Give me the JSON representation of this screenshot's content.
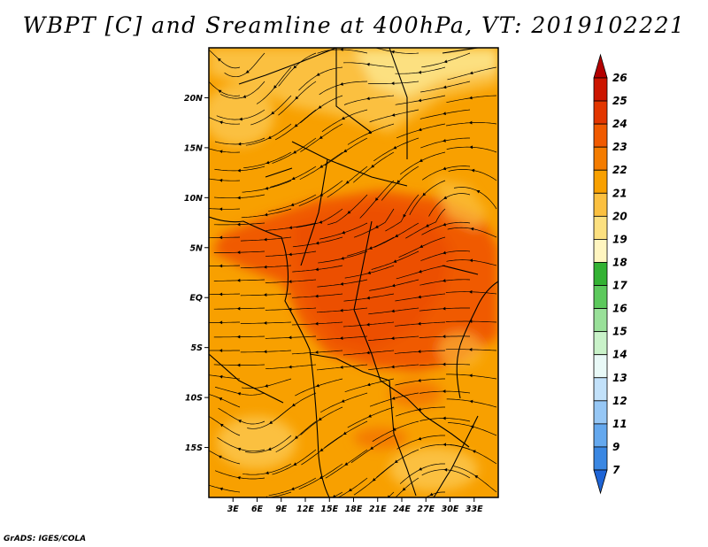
{
  "title": "WBPT [C] and Sreamline at 400hPa, VT: 2019102221",
  "footer": "GrADS: IGES/COLA",
  "map": {
    "variable": "WBPT [C]",
    "overlay": "Streamline",
    "level": "400hPa",
    "valid_time": "2019102221",
    "lon_range": [
      0,
      36
    ],
    "lat_range": [
      -20,
      25
    ],
    "lat_ticks": [
      "20N",
      "15N",
      "10N",
      "5N",
      "EQ",
      "5S",
      "10S",
      "15S"
    ],
    "lon_ticks": [
      "3E",
      "6E",
      "9E",
      "12E",
      "15E",
      "18E",
      "21E",
      "24E",
      "27E",
      "30E",
      "33E"
    ]
  },
  "colorbar": {
    "labels": [
      "26",
      "25",
      "24",
      "23",
      "22",
      "21",
      "20",
      "19",
      "18",
      "17",
      "16",
      "15",
      "14",
      "13",
      "12",
      "11",
      "9",
      "7"
    ],
    "colors": [
      "#b30000",
      "#cc1500",
      "#e23600",
      "#f05a00",
      "#f47c00",
      "#f8a000",
      "#fbc040",
      "#fce080",
      "#fff5c0",
      "#33b233",
      "#5cc95c",
      "#99e099",
      "#c9f2c9",
      "#e9f9f7",
      "#c2e1fa",
      "#96c7f5",
      "#64a8ee",
      "#3a87e2",
      "#1e64d6"
    ]
  }
}
